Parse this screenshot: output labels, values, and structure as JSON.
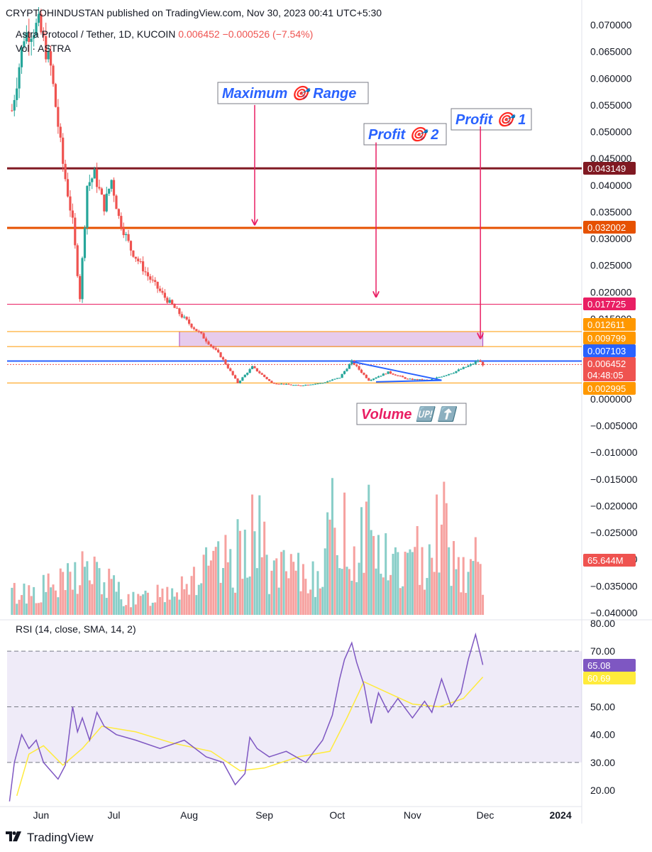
{
  "header": {
    "published": "CRYPTOHINDUSTAN published on TradingView.com, Nov 30, 2023 00:41 UTC+5:30",
    "symbol": "Astra Protocol / Tether, 1D, KUCOIN",
    "last": "0.006452",
    "change": "−0.000526 (−7.54%)",
    "vol_label": "Vol · ASTRA"
  },
  "colors": {
    "up": "#26a69a",
    "down": "#ef5350",
    "level_dark_red": "#801922",
    "level_orange": "#e65100",
    "level_pink": "#e91e63",
    "level_light_orange": "#ff9800",
    "level_blue": "#2962ff",
    "zone_fill": "#e1bee7",
    "rsi_line": "#7e57c2",
    "rsi_ma": "#ffeb3b",
    "arrow": "#e91e63",
    "annotation_text_blue": "#2962ff",
    "annotation_text_pink": "#e91e63"
  },
  "rsi_label": "RSI (14, close, SMA, 14, 2)",
  "footer": {
    "brand": "TradingView",
    "logo_icon": "tradingview-logo-icon"
  },
  "annotations": [
    {
      "text": "Maximum 🎯 Range",
      "color": "#2962ff"
    },
    {
      "text": "Profit 🎯 2",
      "color": "#2962ff"
    },
    {
      "text": "Profit 🎯  1",
      "color": "#2962ff"
    },
    {
      "text": "Volume 🆙 ⬆️",
      "color": "#e91e63"
    }
  ],
  "chart_data": [
    {
      "type": "candlestick",
      "title": "Astra Protocol / Tether, 1D, KUCOIN",
      "x_ticks": [
        "Jun",
        "Jul",
        "Aug",
        "Sep",
        "Oct",
        "Nov",
        "Dec",
        "2024"
      ],
      "y_ticks": [
        "0.070000",
        "0.065000",
        "0.060000",
        "0.055000",
        "0.050000",
        "0.045000",
        "0.040000",
        "0.035000",
        "0.030000",
        "0.025000",
        "0.020000",
        "0.015000",
        "0.010000",
        "0.005000",
        "0.000000",
        "−0.005000",
        "−0.010000",
        "−0.015000",
        "−0.020000",
        "−0.025000",
        "−0.030000",
        "−0.035000",
        "−0.040000"
      ],
      "ylim": [
        -0.04,
        0.07
      ],
      "price_path": [
        [
          "2023-05-20",
          0.054
        ],
        [
          "2023-05-25",
          0.068
        ],
        [
          "2023-05-31",
          0.07
        ],
        [
          "2023-06-05",
          0.062
        ],
        [
          "2023-06-10",
          0.044
        ],
        [
          "2023-06-14",
          0.033
        ],
        [
          "2023-06-17",
          0.019
        ],
        [
          "2023-06-20",
          0.04
        ],
        [
          "2023-06-23",
          0.042
        ],
        [
          "2023-06-27",
          0.036
        ],
        [
          "2023-06-30",
          0.041
        ],
        [
          "2023-07-03",
          0.034
        ],
        [
          "2023-07-08",
          0.028
        ],
        [
          "2023-07-15",
          0.023
        ],
        [
          "2023-07-22",
          0.019
        ],
        [
          "2023-07-30",
          0.015
        ],
        [
          "2023-08-06",
          0.012
        ],
        [
          "2023-08-14",
          0.008
        ],
        [
          "2023-08-21",
          0.003
        ],
        [
          "2023-08-27",
          0.006
        ],
        [
          "2023-09-04",
          0.003
        ],
        [
          "2023-09-15",
          0.0025
        ],
        [
          "2023-09-25",
          0.003
        ],
        [
          "2023-10-02",
          0.004
        ],
        [
          "2023-10-07",
          0.007
        ],
        [
          "2023-10-14",
          0.0035
        ],
        [
          "2023-10-22",
          0.005
        ],
        [
          "2023-10-30",
          0.0037
        ],
        [
          "2023-11-08",
          0.0035
        ],
        [
          "2023-11-18",
          0.005
        ],
        [
          "2023-11-26",
          0.0066
        ],
        [
          "2023-11-28",
          0.0072
        ],
        [
          "2023-11-30",
          0.006452
        ]
      ],
      "horizontal_levels": [
        {
          "value": 0.043149,
          "label": "0.043149",
          "color": "#801922"
        },
        {
          "value": 0.032002,
          "label": "0.032002",
          "color": "#e65100"
        },
        {
          "value": 0.017725,
          "label": "0.017725",
          "color": "#e91e63"
        },
        {
          "value": 0.012611,
          "label": "0.012611",
          "color": "#ff9800"
        },
        {
          "value": 0.009799,
          "label": "0.009799",
          "color": "#ff9800"
        },
        {
          "value": 0.007103,
          "label": "0.007103",
          "color": "#2962ff"
        },
        {
          "value": 0.002995,
          "label": "0.002995",
          "color": "#ff9800"
        }
      ],
      "target_zone": {
        "from": "2023-07-28",
        "to": "2023-11-30",
        "low": 0.009799,
        "high": 0.012611
      },
      "triangle": {
        "upper": [
          [
            "2023-10-07",
            0.007
          ],
          [
            "2023-11-13",
            0.0035
          ]
        ],
        "lower": [
          [
            "2023-10-17",
            0.0032
          ],
          [
            "2023-11-13",
            0.0035
          ]
        ]
      },
      "last_price": {
        "value": 0.006452,
        "label": "0.006452",
        "countdown": "04:48:05"
      },
      "arrows": [
        {
          "date": "2023-08-28",
          "from": 0.055,
          "to": 0.0325
        },
        {
          "date": "2023-10-17",
          "from": 0.048,
          "to": 0.019
        },
        {
          "date": "2023-11-29",
          "from": 0.051,
          "to": 0.0112
        }
      ],
      "volume": {
        "label": "65.644M",
        "path": [
          [
            "2023-05-20",
            0.2
          ],
          [
            "2023-06-10",
            0.28
          ],
          [
            "2023-06-18",
            0.45
          ],
          [
            "2023-07-10",
            0.12
          ],
          [
            "2023-08-01",
            0.35
          ],
          [
            "2023-08-20",
            0.5
          ],
          [
            "2023-08-26",
            0.9
          ],
          [
            "2023-09-05",
            0.4
          ],
          [
            "2023-09-20",
            0.35
          ],
          [
            "2023-09-27",
            0.65
          ],
          [
            "2023-10-01",
            0.95
          ],
          [
            "2023-10-08",
            0.55
          ],
          [
            "2023-10-13",
            0.95
          ],
          [
            "2023-10-20",
            0.5
          ],
          [
            "2023-11-01",
            0.45
          ],
          [
            "2023-11-13",
            0.95
          ],
          [
            "2023-11-20",
            0.45
          ],
          [
            "2023-11-30",
            0.48
          ]
        ]
      }
    },
    {
      "type": "line",
      "title": "RSI (14, close, SMA, 14, 2)",
      "y_ticks": [
        "80.00",
        "70.00",
        "60.00",
        "50.00",
        "40.00",
        "30.00",
        "20.00"
      ],
      "ylim": [
        15,
        82
      ],
      "bands": [
        30,
        50,
        70
      ],
      "series": [
        {
          "name": "RSI",
          "last": "65.08",
          "points": [
            [
              "2023-05-19",
              16
            ],
            [
              "2023-05-21",
              30
            ],
            [
              "2023-05-24",
              40
            ],
            [
              "2023-05-27",
              35
            ],
            [
              "2023-05-30",
              38
            ],
            [
              "2023-06-02",
              30
            ],
            [
              "2023-06-05",
              27
            ],
            [
              "2023-06-08",
              24
            ],
            [
              "2023-06-11",
              29
            ],
            [
              "2023-06-14",
              50
            ],
            [
              "2023-06-16",
              41
            ],
            [
              "2023-06-18",
              46
            ],
            [
              "2023-06-21",
              38
            ],
            [
              "2023-06-24",
              48
            ],
            [
              "2023-06-27",
              43
            ],
            [
              "2023-07-02",
              40
            ],
            [
              "2023-07-10",
              38
            ],
            [
              "2023-07-20",
              35
            ],
            [
              "2023-07-30",
              38
            ],
            [
              "2023-08-08",
              32
            ],
            [
              "2023-08-15",
              30
            ],
            [
              "2023-08-20",
              22
            ],
            [
              "2023-08-24",
              26
            ],
            [
              "2023-08-26",
              39
            ],
            [
              "2023-08-29",
              35
            ],
            [
              "2023-09-03",
              32
            ],
            [
              "2023-09-10",
              34
            ],
            [
              "2023-09-18",
              30
            ],
            [
              "2023-09-25",
              38
            ],
            [
              "2023-09-29",
              47
            ],
            [
              "2023-10-02",
              60
            ],
            [
              "2023-10-04",
              67
            ],
            [
              "2023-10-07",
              73
            ],
            [
              "2023-10-09",
              66
            ],
            [
              "2023-10-12",
              58
            ],
            [
              "2023-10-15",
              44
            ],
            [
              "2023-10-18",
              55
            ],
            [
              "2023-10-22",
              48
            ],
            [
              "2023-10-26",
              53
            ],
            [
              "2023-11-01",
              46
            ],
            [
              "2023-11-06",
              52
            ],
            [
              "2023-11-09",
              48
            ],
            [
              "2023-11-13",
              60
            ],
            [
              "2023-11-17",
              50
            ],
            [
              "2023-11-21",
              55
            ],
            [
              "2023-11-24",
              67
            ],
            [
              "2023-11-27",
              76
            ],
            [
              "2023-11-30",
              65.08
            ]
          ]
        },
        {
          "name": "RSI-based MA",
          "last": "60.69",
          "points": [
            [
              "2023-05-22",
              18
            ],
            [
              "2023-05-27",
              33
            ],
            [
              "2023-06-02",
              36
            ],
            [
              "2023-06-10",
              29
            ],
            [
              "2023-06-18",
              35
            ],
            [
              "2023-06-26",
              43
            ],
            [
              "2023-07-10",
              41
            ],
            [
              "2023-07-25",
              37
            ],
            [
              "2023-08-10",
              34
            ],
            [
              "2023-08-22",
              27
            ],
            [
              "2023-09-01",
              28
            ],
            [
              "2023-09-15",
              32
            ],
            [
              "2023-09-28",
              34
            ],
            [
              "2023-10-05",
              46
            ],
            [
              "2023-10-12",
              59
            ],
            [
              "2023-10-22",
              55
            ],
            [
              "2023-11-01",
              51
            ],
            [
              "2023-11-12",
              50
            ],
            [
              "2023-11-22",
              53
            ],
            [
              "2023-11-30",
              60.69
            ]
          ]
        }
      ]
    }
  ]
}
